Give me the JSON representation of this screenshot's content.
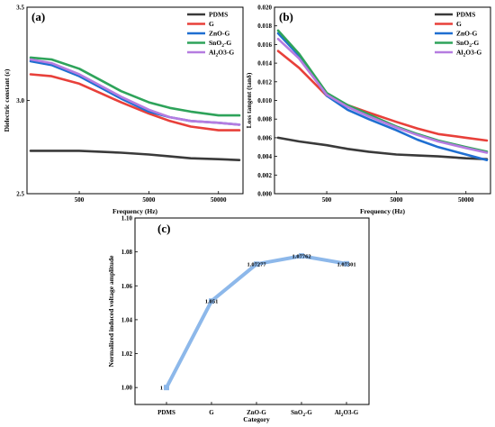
{
  "panels": {
    "a": {
      "label": "(a)"
    },
    "b": {
      "label": "(b)"
    },
    "c": {
      "label": "(c)"
    }
  },
  "colors": {
    "PDMS": "#3a3a3a",
    "G": "#e8403a",
    "ZnO-G": "#1f6fd1",
    "SnO2-G": "#2ea35a",
    "Al2O3-G": "#b57ce0",
    "panel_c_line": "#8db8ea"
  },
  "chart_data": [
    {
      "id": "a",
      "type": "line",
      "xscale": "log",
      "xlabel": "Frequency (Hz)",
      "ylabel": "Dielectric constant (ε)",
      "xlim": [
        100,
        100000
      ],
      "ylim": [
        2.5,
        3.5
      ],
      "xticks": [
        500,
        5000,
        50000
      ],
      "yticks": [
        2.5,
        3.0,
        3.5
      ],
      "ytick_labels": [
        "2.5",
        "3.0",
        "3.5"
      ],
      "legend": "top-right",
      "grid": false,
      "x": [
        100,
        200,
        500,
        1000,
        2000,
        5000,
        10000,
        20000,
        50000,
        100000
      ],
      "series": [
        {
          "name": "PDMS",
          "values": [
            2.73,
            2.73,
            2.73,
            2.725,
            2.72,
            2.71,
            2.7,
            2.69,
            2.685,
            2.68
          ]
        },
        {
          "name": "G",
          "values": [
            3.14,
            3.13,
            3.09,
            3.04,
            2.99,
            2.93,
            2.89,
            2.86,
            2.84,
            2.84
          ]
        },
        {
          "name": "ZnO-G",
          "values": [
            3.21,
            3.19,
            3.13,
            3.07,
            3.01,
            2.94,
            2.91,
            2.89,
            2.88,
            2.87
          ]
        },
        {
          "name": "SnO2-G",
          "values": [
            3.23,
            3.22,
            3.17,
            3.11,
            3.05,
            2.99,
            2.96,
            2.94,
            2.92,
            2.92
          ]
        },
        {
          "name": "Al2O3-G",
          "values": [
            3.22,
            3.2,
            3.14,
            3.08,
            3.02,
            2.95,
            2.91,
            2.89,
            2.88,
            2.87
          ]
        }
      ]
    },
    {
      "id": "b",
      "type": "line",
      "xscale": "log",
      "xlabel": "Frequency (Hz)",
      "ylabel": "Loss tangent (tanδ)",
      "xlim": [
        100,
        100000
      ],
      "ylim": [
        0,
        0.02
      ],
      "xticks": [
        500,
        5000,
        50000
      ],
      "yticks": [
        0,
        0.002,
        0.004,
        0.006,
        0.008,
        0.01,
        0.012,
        0.014,
        0.016,
        0.018,
        0.02
      ],
      "ytick_labels": [
        "0.000",
        "0.002",
        "0.004",
        "0.006",
        "0.008",
        "0.010",
        "0.012",
        "0.014",
        "0.016",
        "0.018",
        "0.020"
      ],
      "legend": "top-right",
      "grid": false,
      "x": [
        100,
        200,
        500,
        1000,
        2000,
        5000,
        10000,
        20000,
        50000,
        100000
      ],
      "series": [
        {
          "name": "PDMS",
          "values": [
            0.006,
            0.0056,
            0.0052,
            0.0048,
            0.0045,
            0.0042,
            0.0041,
            0.004,
            0.0038,
            0.0037
          ]
        },
        {
          "name": "G",
          "values": [
            0.0153,
            0.0135,
            0.0105,
            0.0095,
            0.0087,
            0.0077,
            0.007,
            0.0064,
            0.006,
            0.0057
          ]
        },
        {
          "name": "ZnO-G",
          "values": [
            0.0172,
            0.0148,
            0.0105,
            0.009,
            0.008,
            0.0068,
            0.0058,
            0.005,
            0.0042,
            0.0036
          ]
        },
        {
          "name": "SnO2-G",
          "values": [
            0.0175,
            0.015,
            0.0108,
            0.0095,
            0.0085,
            0.0072,
            0.0064,
            0.0057,
            0.005,
            0.0045
          ]
        },
        {
          "name": "Al2O3-G",
          "values": [
            0.0166,
            0.0145,
            0.0106,
            0.0093,
            0.0083,
            0.0071,
            0.0063,
            0.0056,
            0.0049,
            0.0044
          ]
        }
      ]
    },
    {
      "id": "c",
      "type": "line",
      "xlabel": "Category",
      "ylabel": "Normalized induced voltage amplitude",
      "ylim": [
        0.99,
        1.1
      ],
      "yticks": [
        1.0,
        1.02,
        1.04,
        1.06,
        1.08,
        1.1
      ],
      "ytick_labels": [
        "1.00",
        "1.02",
        "1.04",
        "1.06",
        "1.08",
        "1.10"
      ],
      "grid": false,
      "categories": [
        "PDMS",
        "G",
        "ZnO-G",
        "SnO2-G",
        "Al2O3-G"
      ],
      "values": [
        1.0,
        1.051,
        1.07277,
        1.07762,
        1.07301
      ],
      "data_labels": [
        "1",
        "1.051",
        "1.07277",
        "1.07762",
        "1.07301"
      ]
    }
  ]
}
